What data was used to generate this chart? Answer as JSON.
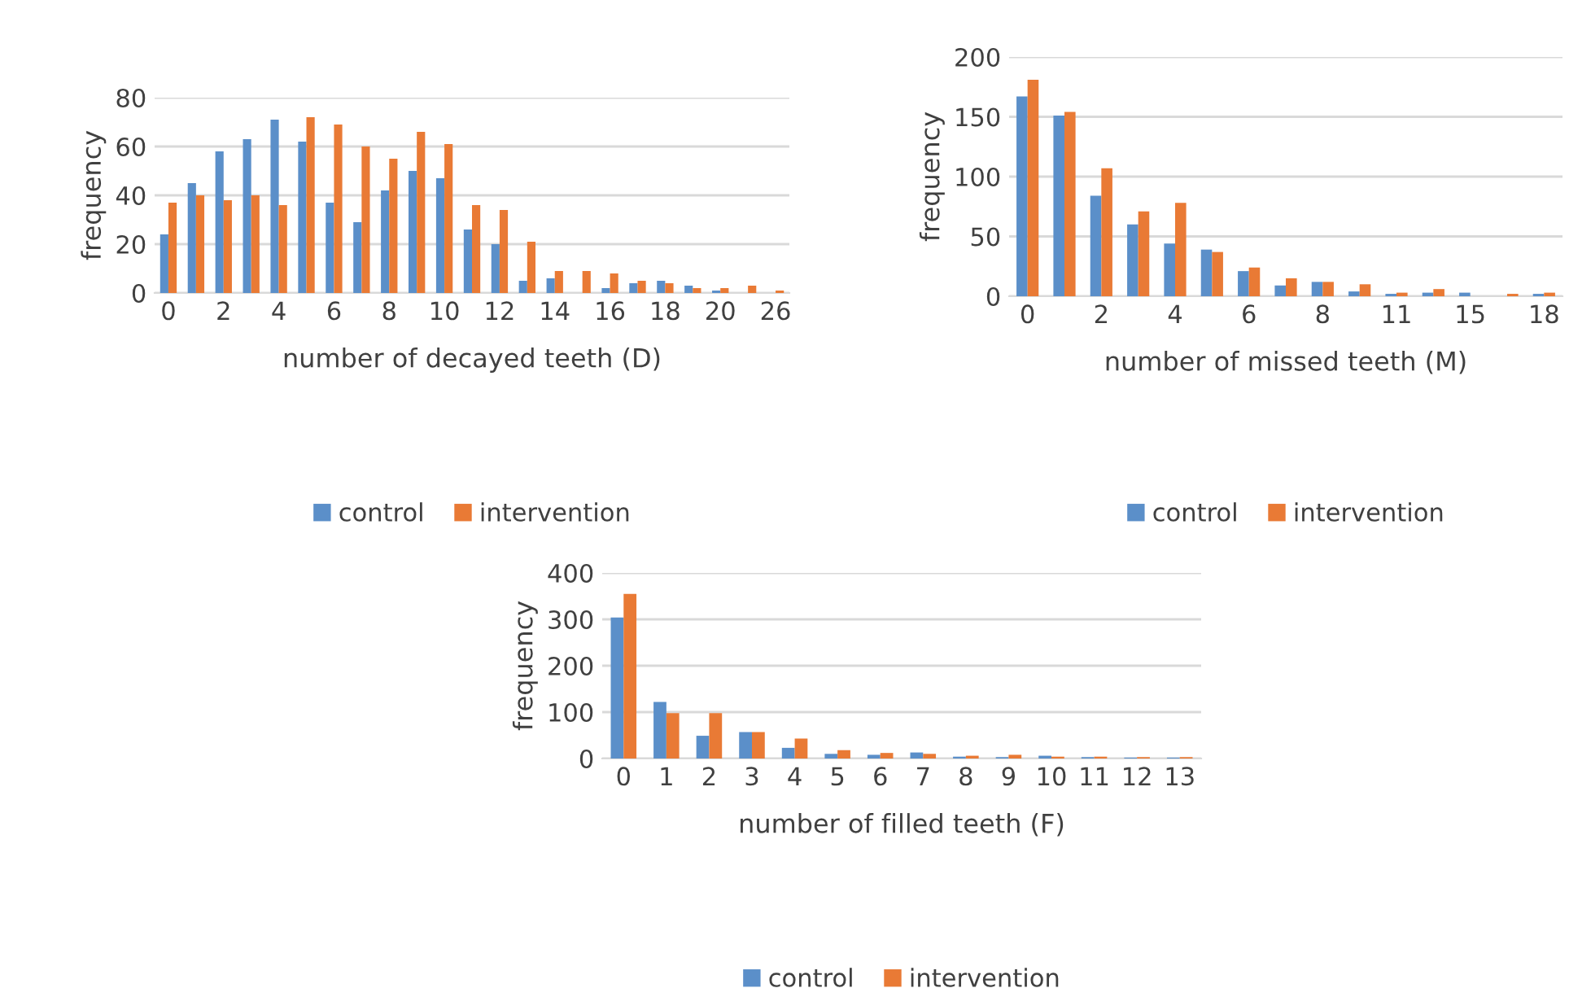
{
  "chart_data": [
    {
      "type": "bar",
      "xlabel": "number of decayed teeth (D)",
      "ylabel": "frequency",
      "categories": [
        "0",
        null,
        "2",
        null,
        "4",
        null,
        "6",
        null,
        "8",
        null,
        "10",
        null,
        "12",
        null,
        "14",
        null,
        "16",
        null,
        "18",
        null,
        "20",
        null,
        "26"
      ],
      "ylim": [
        0,
        80
      ],
      "yticks": [
        0,
        20,
        40,
        60,
        80
      ],
      "grid": "y",
      "legend": "bottom",
      "series": [
        {
          "name": "control",
          "color": "#5b8fc9",
          "values": [
            24,
            45,
            58,
            63,
            71,
            62,
            37,
            29,
            42,
            50,
            47,
            26,
            20,
            5,
            6,
            0,
            2,
            4,
            5,
            3,
            1,
            0,
            0
          ]
        },
        {
          "name": "intervention",
          "color": "#e97a35",
          "values": [
            37,
            40,
            38,
            40,
            36,
            72,
            69,
            60,
            55,
            66,
            61,
            36,
            34,
            21,
            9,
            9,
            8,
            5,
            4,
            2,
            2,
            3,
            1
          ]
        }
      ]
    },
    {
      "type": "bar",
      "xlabel": "number of missed teeth (M)",
      "ylabel": "frequency",
      "categories": [
        "0",
        null,
        "2",
        null,
        "4",
        null,
        "6",
        null,
        "8",
        null,
        "11",
        null,
        "15",
        null,
        "18"
      ],
      "ylim": [
        0,
        200
      ],
      "yticks": [
        0,
        50,
        100,
        150,
        200
      ],
      "grid": "y",
      "legend": "bottom",
      "series": [
        {
          "name": "control",
          "color": "#5b8fc9",
          "values": [
            167,
            151,
            84,
            60,
            44,
            39,
            21,
            9,
            12,
            4,
            2,
            3,
            3,
            0,
            2
          ]
        },
        {
          "name": "intervention",
          "color": "#e97a35",
          "values": [
            181,
            154,
            107,
            71,
            78,
            37,
            24,
            15,
            12,
            10,
            3,
            6,
            0,
            2,
            3
          ]
        }
      ]
    },
    {
      "type": "bar",
      "xlabel": "number of filled teeth (F)",
      "ylabel": "frequency",
      "categories": [
        "0",
        "1",
        "2",
        "3",
        "4",
        "5",
        "6",
        "7",
        "8",
        "9",
        "10",
        "11",
        "12",
        "13"
      ],
      "ylim": [
        0,
        400
      ],
      "yticks": [
        0,
        100,
        200,
        300,
        400
      ],
      "grid": "y",
      "legend": "bottom",
      "series": [
        {
          "name": "control",
          "color": "#5b8fc9",
          "values": [
            304,
            122,
            49,
            57,
            23,
            10,
            8,
            13,
            4,
            3,
            6,
            3,
            2,
            2
          ]
        },
        {
          "name": "intervention",
          "color": "#e97a35",
          "values": [
            355,
            98,
            98,
            57,
            43,
            18,
            12,
            10,
            6,
            8,
            4,
            4,
            3,
            3
          ]
        }
      ]
    }
  ]
}
